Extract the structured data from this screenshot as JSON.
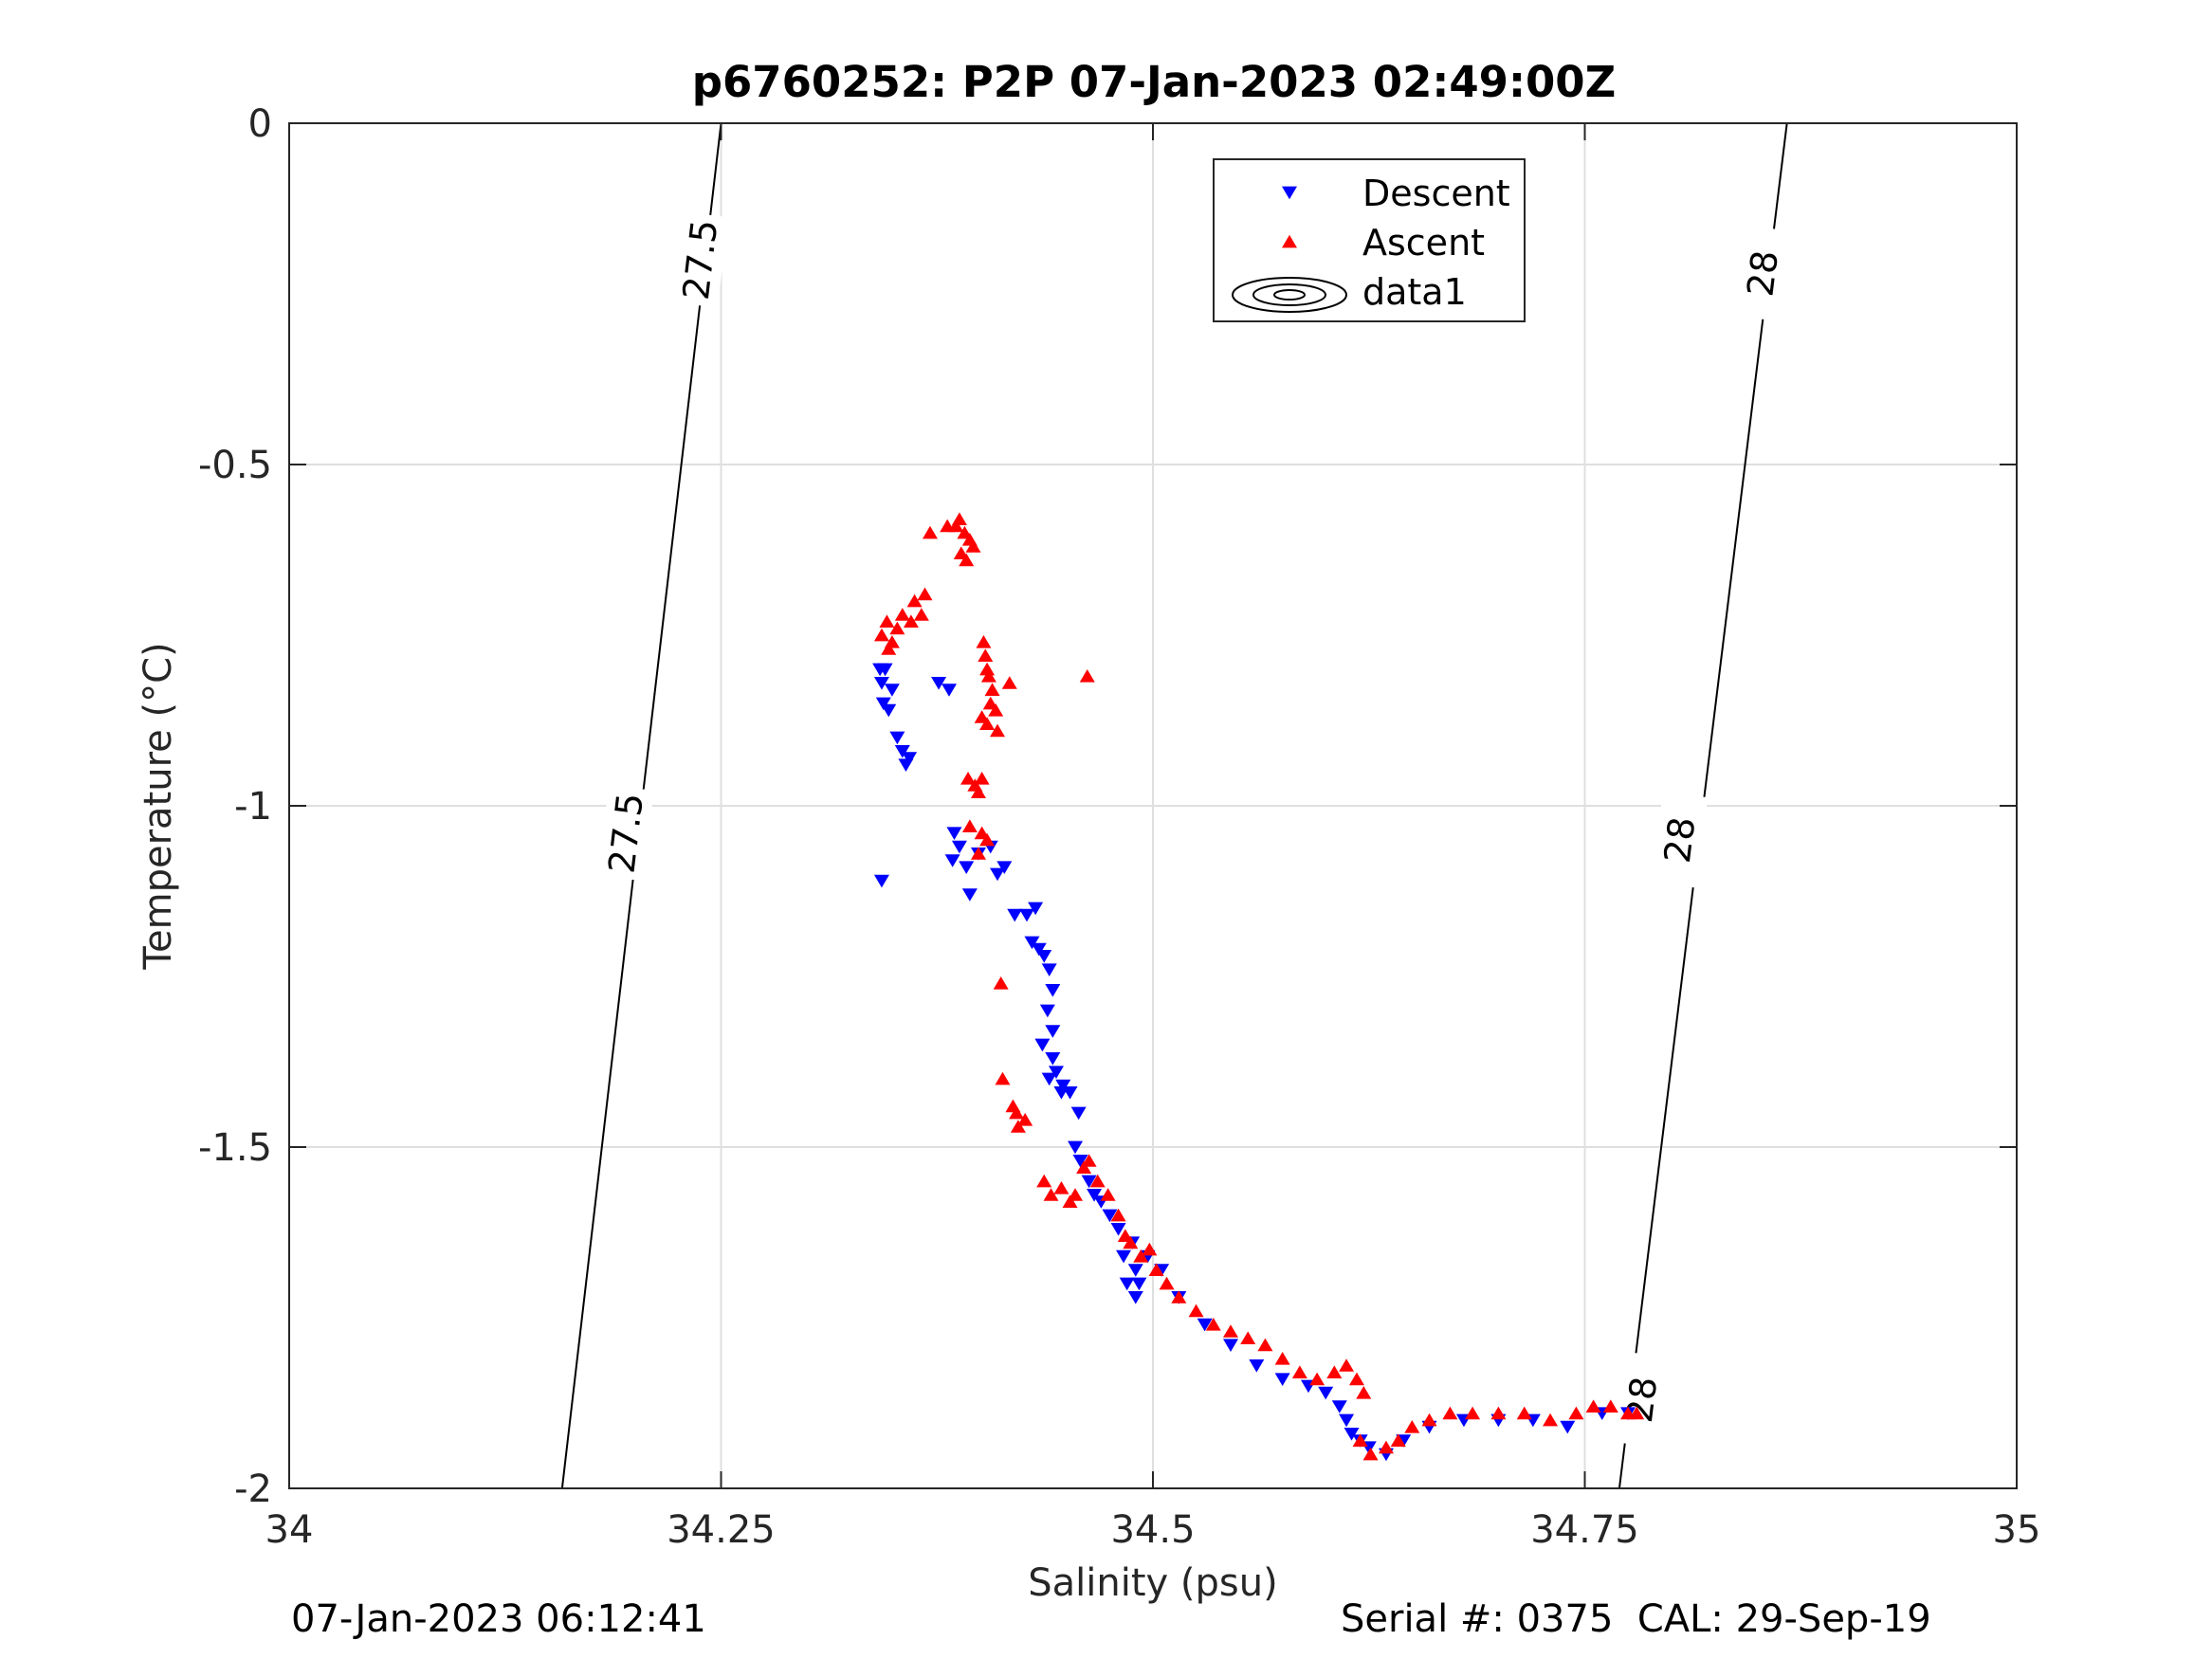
{
  "footer": {
    "timestamp": "07-Jan-2023 06:12:41",
    "serial_cal": "Serial #: 0375  CAL: 29-Sep-19"
  },
  "chart_data": {
    "type": "scatter",
    "title": "p6760252: P2P 07-Jan-2023 02:49:00Z",
    "xlabel": "Salinity (psu)",
    "ylabel": "Temperature (°C)",
    "xlim": [
      34,
      35
    ],
    "ylim": [
      -2,
      0
    ],
    "xticks": [
      34,
      34.25,
      34.5,
      34.75,
      35
    ],
    "xtick_labels": [
      "34",
      "34.25",
      "34.5",
      "34.75",
      "35"
    ],
    "yticks": [
      0,
      -0.5,
      -1,
      -1.5,
      -2
    ],
    "ytick_labels": [
      "0",
      "-0.5",
      "-1",
      "-1.5",
      "-2"
    ],
    "grid": true,
    "legend_position": "top-right inside plot",
    "legend": [
      {
        "label": "Descent",
        "marker": "triangle-down",
        "color": "#0000ff"
      },
      {
        "label": "Ascent",
        "marker": "triangle-up",
        "color": "#ff0000"
      },
      {
        "label": "data1",
        "marker": "contour",
        "color": "#000000"
      }
    ],
    "contours": [
      {
        "level": "27.5",
        "points": [
          [
            34.158,
            -2
          ],
          [
            34.25,
            0
          ]
        ],
        "labels": [
          [
            34.195,
            -1.04
          ],
          [
            34.238,
            -0.2
          ]
        ]
      },
      {
        "level": "28",
        "points": [
          [
            34.77,
            -2
          ],
          [
            34.867,
            0
          ]
        ],
        "labels": [
          [
            34.783,
            -1.87
          ],
          [
            34.805,
            -1.05
          ],
          [
            34.853,
            -0.22
          ]
        ]
      }
    ],
    "series": [
      {
        "name": "Descent",
        "marker": "triangle-down",
        "color": "#0000ff",
        "points": [
          [
            34.342,
            -0.8
          ],
          [
            34.343,
            -0.82
          ],
          [
            34.345,
            -0.8
          ],
          [
            34.344,
            -0.85
          ],
          [
            34.347,
            -0.86
          ],
          [
            34.349,
            -0.83
          ],
          [
            34.352,
            -0.9
          ],
          [
            34.355,
            -0.92
          ],
          [
            34.357,
            -0.94
          ],
          [
            34.359,
            -0.93
          ],
          [
            34.343,
            -1.11
          ],
          [
            34.376,
            -0.82
          ],
          [
            34.382,
            -0.83
          ],
          [
            34.385,
            -1.04
          ],
          [
            34.388,
            -1.06
          ],
          [
            34.384,
            -1.08
          ],
          [
            34.392,
            -1.09
          ],
          [
            34.394,
            -1.13
          ],
          [
            34.399,
            -1.07
          ],
          [
            34.406,
            -1.06
          ],
          [
            34.414,
            -1.09
          ],
          [
            34.41,
            -1.1
          ],
          [
            34.42,
            -1.16
          ],
          [
            34.427,
            -1.16
          ],
          [
            34.432,
            -1.15
          ],
          [
            34.43,
            -1.2
          ],
          [
            34.434,
            -1.21
          ],
          [
            34.437,
            -1.22
          ],
          [
            34.44,
            -1.24
          ],
          [
            34.442,
            -1.27
          ],
          [
            34.439,
            -1.3
          ],
          [
            34.442,
            -1.33
          ],
          [
            34.436,
            -1.35
          ],
          [
            34.442,
            -1.37
          ],
          [
            34.444,
            -1.39
          ],
          [
            34.44,
            -1.4
          ],
          [
            34.448,
            -1.41
          ],
          [
            34.447,
            -1.42
          ],
          [
            34.452,
            -1.42
          ],
          [
            34.457,
            -1.45
          ],
          [
            34.455,
            -1.5
          ],
          [
            34.458,
            -1.52
          ],
          [
            34.463,
            -1.55
          ],
          [
            34.466,
            -1.57
          ],
          [
            34.47,
            -1.58
          ],
          [
            34.475,
            -1.6
          ],
          [
            34.48,
            -1.62
          ],
          [
            34.483,
            -1.66
          ],
          [
            34.488,
            -1.64
          ],
          [
            34.49,
            -1.68
          ],
          [
            34.492,
            -1.7
          ],
          [
            34.485,
            -1.7
          ],
          [
            34.49,
            -1.72
          ],
          [
            34.497,
            -1.66
          ],
          [
            34.505,
            -1.68
          ],
          [
            34.515,
            -1.72
          ],
          [
            34.53,
            -1.76
          ],
          [
            34.545,
            -1.79
          ],
          [
            34.56,
            -1.82
          ],
          [
            34.575,
            -1.84
          ],
          [
            34.59,
            -1.85
          ],
          [
            34.6,
            -1.86
          ],
          [
            34.608,
            -1.88
          ],
          [
            34.612,
            -1.9
          ],
          [
            34.615,
            -1.92
          ],
          [
            34.62,
            -1.93
          ],
          [
            34.625,
            -1.94
          ],
          [
            34.635,
            -1.95
          ],
          [
            34.645,
            -1.93
          ],
          [
            34.66,
            -1.91
          ],
          [
            34.68,
            -1.9
          ],
          [
            34.7,
            -1.9
          ],
          [
            34.72,
            -1.9
          ],
          [
            34.74,
            -1.91
          ],
          [
            34.76,
            -1.89
          ],
          [
            34.775,
            -1.89
          ]
        ]
      },
      {
        "name": "Ascent",
        "marker": "triangle-up",
        "color": "#ff0000",
        "points": [
          [
            34.343,
            -0.75
          ],
          [
            34.346,
            -0.73
          ],
          [
            34.349,
            -0.76
          ],
          [
            34.352,
            -0.74
          ],
          [
            34.355,
            -0.72
          ],
          [
            34.347,
            -0.77
          ],
          [
            34.36,
            -0.73
          ],
          [
            34.362,
            -0.7
          ],
          [
            34.366,
            -0.72
          ],
          [
            34.368,
            -0.69
          ],
          [
            34.371,
            -0.6
          ],
          [
            34.381,
            -0.59
          ],
          [
            34.386,
            -0.59
          ],
          [
            34.388,
            -0.58
          ],
          [
            34.391,
            -0.6
          ],
          [
            34.389,
            -0.63
          ],
          [
            34.394,
            -0.61
          ],
          [
            34.396,
            -0.62
          ],
          [
            34.392,
            -0.64
          ],
          [
            34.402,
            -0.76
          ],
          [
            34.403,
            -0.78
          ],
          [
            34.405,
            -0.81
          ],
          [
            34.407,
            -0.83
          ],
          [
            34.404,
            -0.8
          ],
          [
            34.417,
            -0.82
          ],
          [
            34.462,
            -0.81
          ],
          [
            34.401,
            -0.87
          ],
          [
            34.404,
            -0.88
          ],
          [
            34.406,
            -0.85
          ],
          [
            34.409,
            -0.86
          ],
          [
            34.41,
            -0.89
          ],
          [
            34.393,
            -0.96
          ],
          [
            34.397,
            -0.97
          ],
          [
            34.399,
            -0.98
          ],
          [
            34.401,
            -0.96
          ],
          [
            34.394,
            -1.03
          ],
          [
            34.401,
            -1.04
          ],
          [
            34.404,
            -1.05
          ],
          [
            34.399,
            -1.07
          ],
          [
            34.412,
            -1.26
          ],
          [
            34.413,
            -1.4
          ],
          [
            34.419,
            -1.44
          ],
          [
            34.421,
            -1.45
          ],
          [
            34.426,
            -1.46
          ],
          [
            34.422,
            -1.47
          ],
          [
            34.437,
            -1.55
          ],
          [
            34.441,
            -1.57
          ],
          [
            34.447,
            -1.56
          ],
          [
            34.452,
            -1.58
          ],
          [
            34.455,
            -1.57
          ],
          [
            34.46,
            -1.53
          ],
          [
            34.463,
            -1.52
          ],
          [
            34.468,
            -1.55
          ],
          [
            34.474,
            -1.57
          ],
          [
            34.48,
            -1.6
          ],
          [
            34.484,
            -1.63
          ],
          [
            34.487,
            -1.64
          ],
          [
            34.493,
            -1.66
          ],
          [
            34.498,
            -1.65
          ],
          [
            34.502,
            -1.68
          ],
          [
            34.508,
            -1.7
          ],
          [
            34.515,
            -1.72
          ],
          [
            34.525,
            -1.74
          ],
          [
            34.535,
            -1.76
          ],
          [
            34.545,
            -1.77
          ],
          [
            34.555,
            -1.78
          ],
          [
            34.565,
            -1.79
          ],
          [
            34.575,
            -1.81
          ],
          [
            34.585,
            -1.83
          ],
          [
            34.595,
            -1.84
          ],
          [
            34.605,
            -1.83
          ],
          [
            34.612,
            -1.82
          ],
          [
            34.618,
            -1.84
          ],
          [
            34.622,
            -1.86
          ],
          [
            34.62,
            -1.93
          ],
          [
            34.626,
            -1.95
          ],
          [
            34.635,
            -1.94
          ],
          [
            34.642,
            -1.93
          ],
          [
            34.65,
            -1.91
          ],
          [
            34.66,
            -1.9
          ],
          [
            34.672,
            -1.89
          ],
          [
            34.685,
            -1.89
          ],
          [
            34.7,
            -1.89
          ],
          [
            34.715,
            -1.89
          ],
          [
            34.73,
            -1.9
          ],
          [
            34.745,
            -1.89
          ],
          [
            34.755,
            -1.88
          ],
          [
            34.765,
            -1.88
          ],
          [
            34.775,
            -1.89
          ],
          [
            34.78,
            -1.89
          ]
        ]
      }
    ]
  }
}
